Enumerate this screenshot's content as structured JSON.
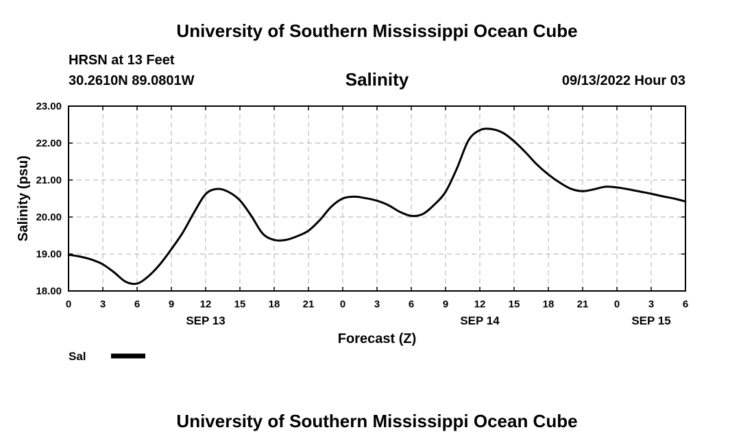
{
  "header": {
    "title_top": "University of Southern Mississippi Ocean Cube",
    "title_bottom": "University of Southern Mississippi Ocean Cube",
    "station": "HRSN at 13 Feet",
    "coordinates": "30.2610N  89.0801W",
    "chart_title": "Salinity",
    "datetime": "09/13/2022 Hour 03"
  },
  "colors": {
    "line": "#000000",
    "grid": "#bdbdbd",
    "background": "#ffffff"
  },
  "chart_data": {
    "type": "line",
    "title": "Salinity",
    "xlabel": "Forecast (Z)",
    "ylabel": "Salinity (psu)",
    "xlim": [
      0,
      54
    ],
    "ylim": [
      18.0,
      23.0
    ],
    "x_ticks": [
      0,
      3,
      6,
      9,
      12,
      15,
      18,
      21,
      24,
      27,
      30,
      33,
      36,
      39,
      42,
      45,
      48,
      51,
      54
    ],
    "x_tick_labels": [
      "0",
      "3",
      "6",
      "9",
      "12",
      "15",
      "18",
      "21",
      "0",
      "3",
      "6",
      "9",
      "12",
      "15",
      "18",
      "21",
      "0",
      "3",
      "6"
    ],
    "y_ticks": [
      18.0,
      19.0,
      20.0,
      21.0,
      22.0,
      23.0
    ],
    "y_tick_labels": [
      "18.00",
      "19.00",
      "20.00",
      "21.00",
      "22.00",
      "23.00"
    ],
    "date_labels": [
      {
        "x": 12,
        "label": "SEP 13"
      },
      {
        "x": 36,
        "label": "SEP 14"
      },
      {
        "x": 51,
        "label": "SEP 15"
      }
    ],
    "grid": true,
    "legend": [
      {
        "name": "Sal",
        "placement": "bottom-left"
      }
    ],
    "series": [
      {
        "name": "Sal",
        "x": [
          0,
          1,
          2,
          3,
          4,
          5,
          6,
          7,
          8,
          9,
          10,
          11,
          12,
          13,
          14,
          15,
          16,
          17,
          18,
          19,
          20,
          21,
          22,
          23,
          24,
          25,
          26,
          27,
          28,
          29,
          30,
          31,
          32,
          33,
          34,
          35,
          36,
          37,
          38,
          39,
          40,
          41,
          42,
          43,
          44,
          45,
          46,
          47,
          48,
          49,
          50,
          51,
          52,
          53,
          54
        ],
        "values": [
          18.98,
          18.93,
          18.85,
          18.72,
          18.5,
          18.25,
          18.2,
          18.4,
          18.72,
          19.13,
          19.58,
          20.13,
          20.62,
          20.76,
          20.68,
          20.45,
          20.03,
          19.55,
          19.38,
          19.38,
          19.48,
          19.63,
          19.92,
          20.28,
          20.5,
          20.55,
          20.51,
          20.44,
          20.32,
          20.14,
          20.03,
          20.08,
          20.33,
          20.68,
          21.32,
          22.07,
          22.35,
          22.38,
          22.28,
          22.05,
          21.75,
          21.42,
          21.15,
          20.93,
          20.76,
          20.7,
          20.75,
          20.82,
          20.8,
          20.75,
          20.69,
          20.63,
          20.56,
          20.5,
          20.42
        ]
      }
    ]
  }
}
